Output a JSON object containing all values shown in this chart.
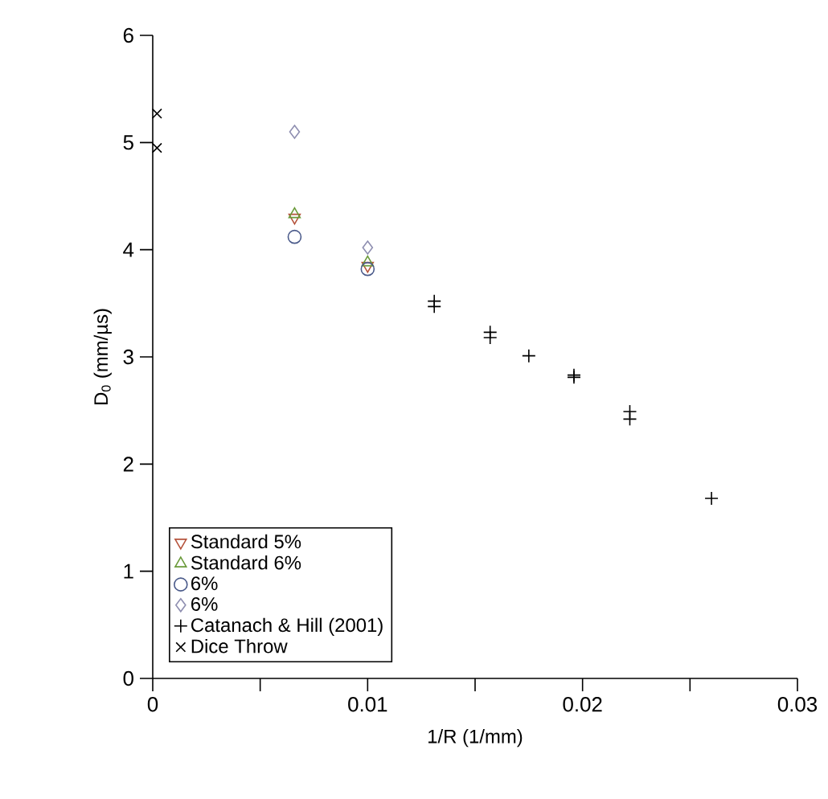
{
  "chart_data": {
    "type": "scatter",
    "xlabel": "1/R  (1/mm)",
    "ylabel": "D$_{0}$  (mm/µs)",
    "xlim": [
      0,
      0.03
    ],
    "ylim": [
      0,
      6
    ],
    "xticks": [
      0,
      {
        "value": 0.005,
        "label": null
      },
      0.01,
      {
        "value": 0.015,
        "label": null
      },
      0.02,
      {
        "value": 0.025,
        "label": null
      },
      0.03
    ],
    "yticks": [
      0,
      1,
      2,
      3,
      4,
      5,
      6
    ],
    "legend": "bottom left",
    "grid": false,
    "series": [
      {
        "name": "Standard 5%",
        "color": "#b5533c",
        "marker": "triangle-down",
        "x": [
          0.0066,
          0.01
        ],
        "values": [
          4.3,
          3.85
        ]
      },
      {
        "name": "Standard 6%",
        "color": "#6a9a3a",
        "marker": "triangle",
        "x": [
          0.0066,
          0.01
        ],
        "values": [
          4.33,
          3.88
        ]
      },
      {
        "name": "6%",
        "color": "#4a5a8a",
        "marker": "circle",
        "x": [
          0.0066,
          0.01
        ],
        "values": [
          4.12,
          3.82
        ]
      },
      {
        "name": "6%",
        "color": "#8e8eb0",
        "marker": "diamond",
        "x": [
          0.0066,
          0.01
        ],
        "values": [
          5.1,
          4.02
        ]
      },
      {
        "name": "Catanach & Hill (2001)",
        "color": "#000000",
        "marker": "plus",
        "x": [
          0.0131,
          0.0131,
          0.0157,
          0.0157,
          0.0175,
          0.0196,
          0.0196,
          0.0222,
          0.0222,
          0.026
        ],
        "values": [
          3.52,
          3.47,
          3.23,
          3.18,
          3.01,
          2.83,
          2.81,
          2.49,
          2.42,
          1.68
        ]
      },
      {
        "name": "Dice Throw",
        "color": "#000000",
        "marker": "cross",
        "x": [
          0.0002,
          0.0002
        ],
        "values": [
          5.27,
          4.95
        ]
      }
    ]
  }
}
